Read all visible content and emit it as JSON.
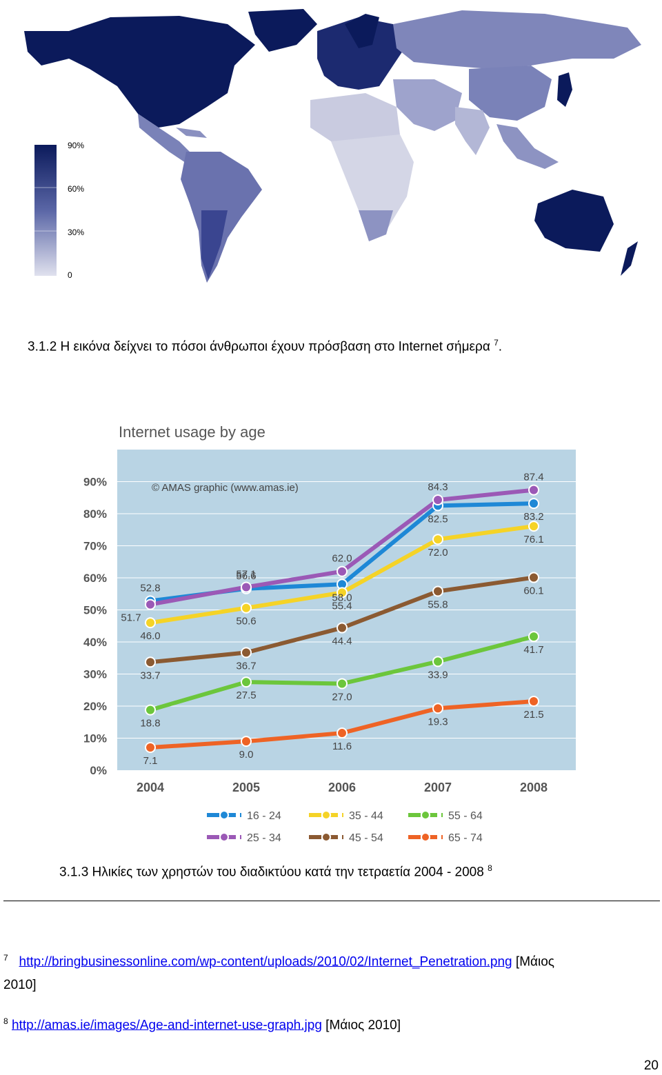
{
  "map": {
    "legend": [
      "90%",
      "60%",
      "30%",
      "0"
    ],
    "colors": {
      "high": "#0b1a5b",
      "mid": "#5a66a6",
      "low": "#b8bcd6",
      "none": "#d9d9d9"
    }
  },
  "caption_1": {
    "text": "3.1.2 Η  εικόνα δείχνει το πόσοι άνθρωποι έχουν πρόσβαση στο Internet σήμερα",
    "ref": "7",
    "tail": "."
  },
  "caption_2": {
    "text": "3.1.3 Ηλικίες των χρηστών του διαδικτύου κατά την τετραετία 2004 - 2008",
    "ref": "8"
  },
  "chart_data": {
    "type": "line",
    "title": "Internet usage by age",
    "annotation": "© AMAS graphic (www.amas.ie)",
    "categories": [
      "2004",
      "2005",
      "2006",
      "2007",
      "2008"
    ],
    "y_ticks": [
      "0%",
      "10%",
      "20%",
      "30%",
      "40%",
      "50%",
      "60%",
      "70%",
      "80%",
      "90%"
    ],
    "ylim": [
      0,
      100
    ],
    "legend_placement": "bottom",
    "series": [
      {
        "name": "16 - 24",
        "color": "#1e88d6",
        "values": [
          52.8,
          56.6,
          58.0,
          82.5,
          83.2
        ]
      },
      {
        "name": "25 - 34",
        "color": "#9b59b6",
        "values": [
          51.7,
          57.1,
          62.0,
          84.3,
          87.4
        ]
      },
      {
        "name": "35 - 44",
        "color": "#f5d327",
        "values": [
          46.0,
          50.6,
          55.4,
          72.0,
          76.1
        ]
      },
      {
        "name": "45 - 54",
        "color": "#8b5a32",
        "values": [
          33.7,
          36.7,
          44.4,
          55.8,
          60.1
        ]
      },
      {
        "name": "55 - 64",
        "color": "#6cc63c",
        "values": [
          18.8,
          27.5,
          27.0,
          33.9,
          41.7
        ]
      },
      {
        "name": "65 - 74",
        "color": "#ee6325",
        "values": [
          7.1,
          9.0,
          11.6,
          19.3,
          21.5
        ]
      }
    ]
  },
  "footnotes": {
    "fn7": {
      "mark": "7",
      "url": "http://bringbusinessonline.com/wp-content/uploads/2010/02/Internet_Penetration.png",
      "date_a": " [Μάιος",
      "date_b": "2010]"
    },
    "fn8": {
      "mark": "8",
      "url": "http://amas.ie/images/Age-and-internet-use-graph.jpg",
      "date": " [Μάιος 2010]"
    }
  },
  "page_number": "20"
}
